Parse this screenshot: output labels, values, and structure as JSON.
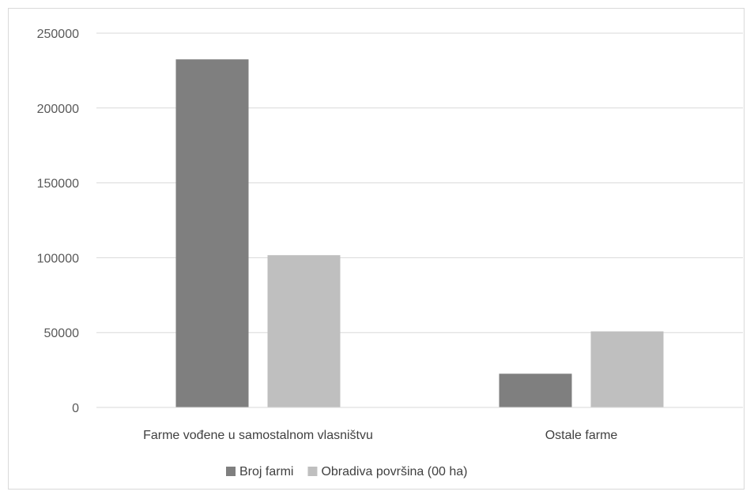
{
  "chart_data": {
    "type": "bar",
    "categories": [
      "Farme vođene u samostalnom vlasništvu",
      "Ostale farme"
    ],
    "series": [
      {
        "name": "Broj farmi",
        "values": [
          232500,
          22500
        ],
        "color": "#7f7f7f"
      },
      {
        "name": "Obradiva površina (00 ha)",
        "values": [
          101700,
          50800
        ],
        "color": "#bfbfbf"
      }
    ],
    "ylim": [
      0,
      250000
    ],
    "yticks": [
      0,
      50000,
      100000,
      150000,
      200000,
      250000
    ],
    "gridlines": true,
    "legend_position": "bottom"
  }
}
